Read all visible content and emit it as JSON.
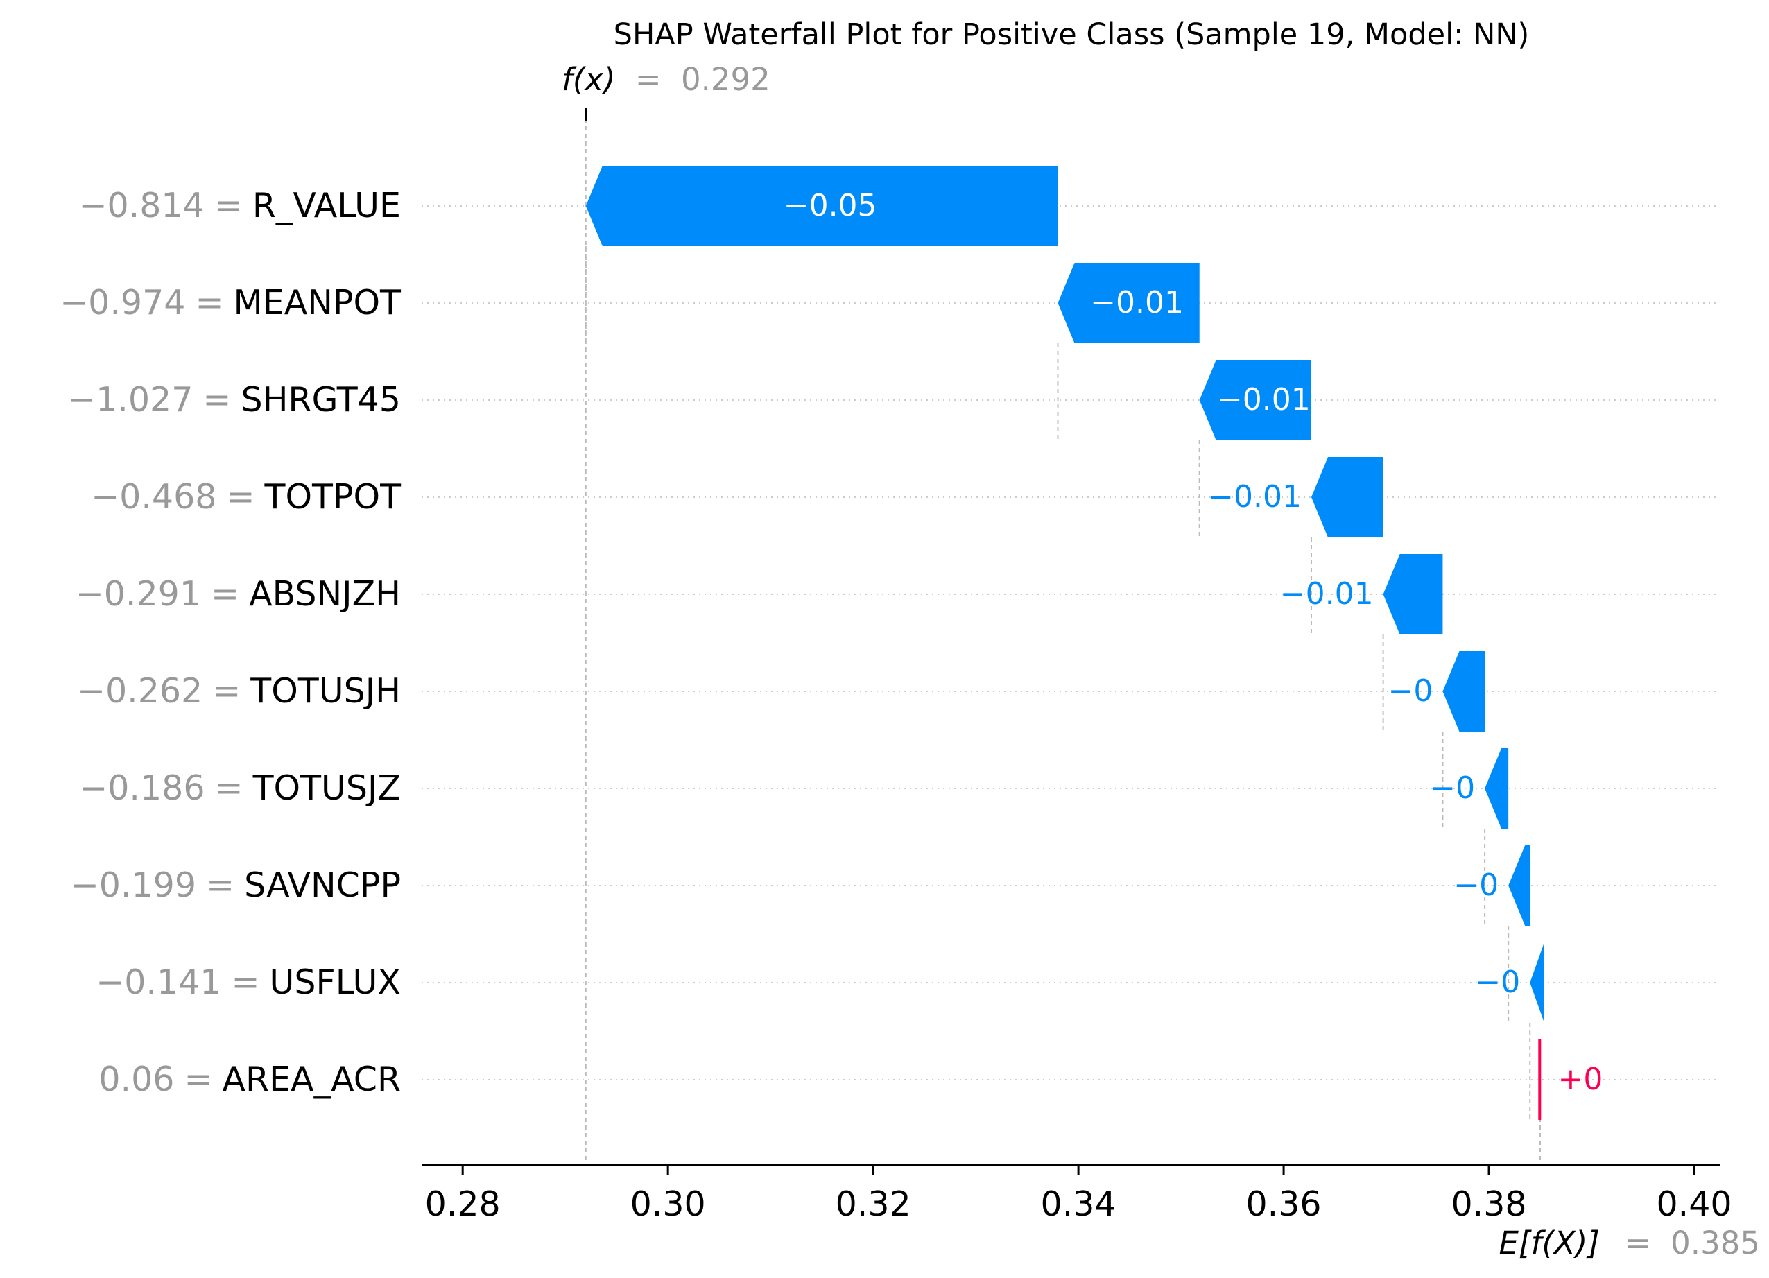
{
  "chart_data": {
    "type": "bar",
    "subtype": "waterfall",
    "title": "SHAP Waterfall Plot for Positive Class (Sample 19, Model: NN)",
    "fx": {
      "label": "f(x)",
      "eq": "=",
      "value": 0.292,
      "value_label": "0.292"
    },
    "ex": {
      "label": "E[f(X)]",
      "eq": "=",
      "value": 0.385,
      "value_label": "0.385"
    },
    "xlim": [
      0.276,
      0.4025
    ],
    "xticks": [
      0.28,
      0.3,
      0.32,
      0.34,
      0.36,
      0.38,
      0.4
    ],
    "xtick_labels": [
      "0.28",
      "0.30",
      "0.32",
      "0.34",
      "0.36",
      "0.38",
      "0.40"
    ],
    "features": [
      {
        "value_text": "−0.814",
        "eq": "=",
        "name": "R_VALUE",
        "left": 0.292,
        "right": 0.338,
        "label": "−0.05",
        "sign": "neg",
        "label_pos": "inside"
      },
      {
        "value_text": "−0.974",
        "eq": "=",
        "name": "MEANPOT",
        "left": 0.338,
        "right": 0.3518,
        "label": "−0.01",
        "sign": "neg",
        "label_pos": "inside"
      },
      {
        "value_text": "−1.027",
        "eq": "=",
        "name": "SHRGT45",
        "left": 0.3518,
        "right": 0.3627,
        "label": "−0.01",
        "sign": "neg",
        "label_pos": "inside"
      },
      {
        "value_text": "−0.468",
        "eq": "=",
        "name": "TOTPOT",
        "left": 0.3627,
        "right": 0.3697,
        "label": "−0.01",
        "sign": "neg",
        "label_pos": "outside"
      },
      {
        "value_text": "−0.291",
        "eq": "=",
        "name": "ABSNJZH",
        "left": 0.3697,
        "right": 0.3755,
        "label": "−0.01",
        "sign": "neg",
        "label_pos": "outside"
      },
      {
        "value_text": "−0.262",
        "eq": "=",
        "name": "TOTUSJH",
        "left": 0.3755,
        "right": 0.3796,
        "label": "−0",
        "sign": "neg",
        "label_pos": "outside"
      },
      {
        "value_text": "−0.186",
        "eq": "=",
        "name": "TOTUSJZ",
        "left": 0.3796,
        "right": 0.3819,
        "label": "−0",
        "sign": "neg",
        "label_pos": "outside"
      },
      {
        "value_text": "−0.199",
        "eq": "=",
        "name": "SAVNCPP",
        "left": 0.3819,
        "right": 0.384,
        "label": "−0",
        "sign": "neg",
        "label_pos": "outside"
      },
      {
        "value_text": "−0.141",
        "eq": "=",
        "name": "USFLUX",
        "left": 0.384,
        "right": 0.3854,
        "label": "−0",
        "sign": "neg",
        "label_pos": "outside"
      },
      {
        "value_text": "0.06",
        "eq": "=",
        "name": "AREA_ACR",
        "left": 0.3848,
        "right": 0.3851,
        "label": "+0",
        "sign": "pos",
        "label_pos": "outside"
      }
    ],
    "grid": "dotted horizontal",
    "colors": {
      "negative": "#008bfb",
      "positive": "#ff0051",
      "muted": "#999999",
      "text": "#000000",
      "bar_label": "#ffffff"
    }
  }
}
